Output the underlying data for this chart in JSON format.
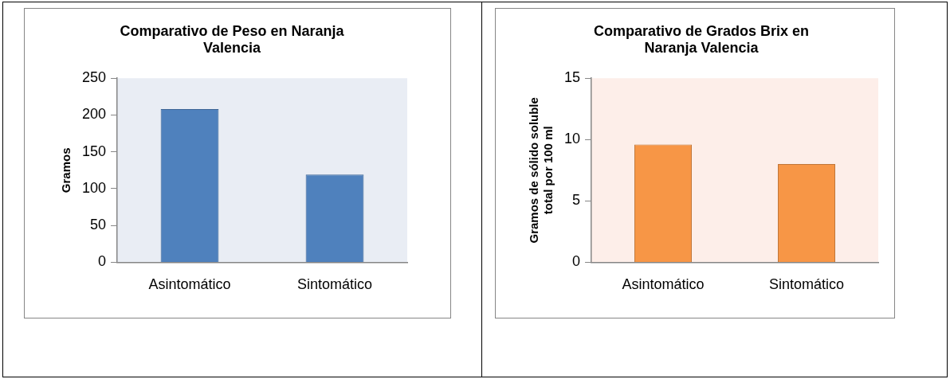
{
  "chart_data": [
    {
      "type": "bar",
      "title": "Comparativo de Peso en Naranja Valencia",
      "ylabel": "Gramos",
      "categories": [
        "Asintomático",
        "Sintomático"
      ],
      "values": [
        208,
        119
      ],
      "color": "#4f81bd",
      "ylim": [
        0,
        250
      ],
      "yticks": [
        0,
        50,
        100,
        150,
        200,
        250
      ],
      "grid": false
    },
    {
      "type": "bar",
      "title": "Comparativo de Grados Brix en Naranja Valencia",
      "ylabel": "Gramos de sólido soluble total por 100 ml",
      "categories": [
        "Asintomático",
        "Sintomático"
      ],
      "values": [
        9.6,
        8.0
      ],
      "color": "#f79646",
      "ylim": [
        0,
        15
      ],
      "yticks": [
        0,
        5,
        10,
        15
      ],
      "grid": false
    }
  ]
}
